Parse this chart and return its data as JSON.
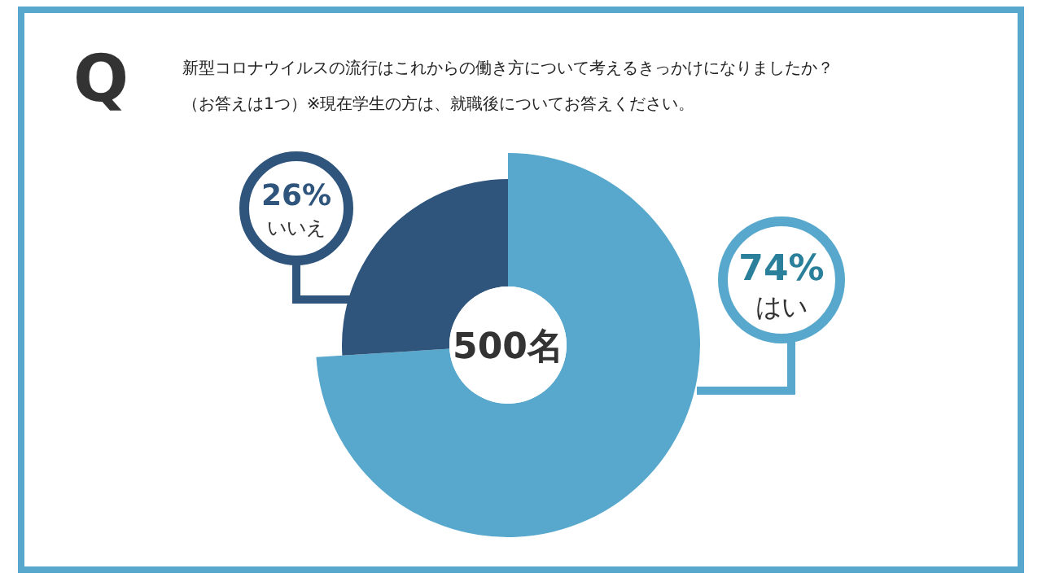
{
  "chart_data": {
    "type": "donut",
    "title": "新型コロナウイルスの流行はこれからの働き方について考えるきっかけになりましたか？",
    "subtitle": "（お答えは1つ）※現在学生の方は、就職後についてお答えください。",
    "categories": [
      "はい",
      "いいえ"
    ],
    "values": [
      74,
      26
    ],
    "colors": [
      "#57a8cc",
      "#2f557c"
    ],
    "value_labels": [
      "74%",
      "26%"
    ],
    "annotations": [
      "Q",
      "500名"
    ],
    "legend": false
  }
}
